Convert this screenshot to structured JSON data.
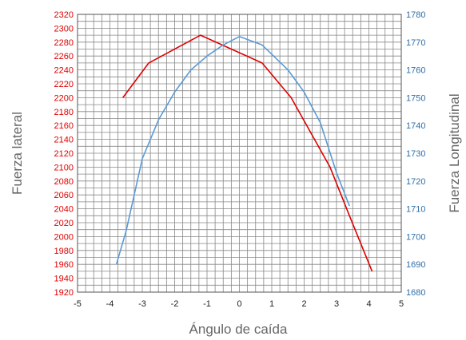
{
  "chart_data": {
    "type": "line",
    "xlabel": "Ángulo de caída",
    "ylabel_left": "Fuerza lateral",
    "ylabel_right": "Fuerza Longitudinal",
    "xlim": [
      -5,
      5
    ],
    "ylim_left": [
      1920,
      2320
    ],
    "ylim_right": [
      1680,
      1780
    ],
    "x_ticks": [
      -5,
      -4,
      -3,
      -2,
      -1,
      0,
      1,
      2,
      3,
      4,
      5
    ],
    "y_left_ticks": [
      1920,
      1940,
      1960,
      1980,
      2000,
      2020,
      2040,
      2060,
      2080,
      2100,
      2120,
      2140,
      2160,
      2180,
      2200,
      2220,
      2240,
      2260,
      2280,
      2300,
      2320
    ],
    "y_right_ticks": [
      1680,
      1690,
      1700,
      1710,
      1720,
      1730,
      1740,
      1750,
      1760,
      1770,
      1780
    ],
    "grid": true,
    "series": [
      {
        "axis": "left",
        "color": "#e00000",
        "points": [
          [
            -3.6,
            2200
          ],
          [
            -2.8,
            2250
          ],
          [
            -1.2,
            2290
          ],
          [
            0.7,
            2250
          ],
          [
            1.6,
            2200
          ],
          [
            2.8,
            2100
          ],
          [
            3.4,
            2030
          ],
          [
            4.1,
            1950
          ]
        ]
      },
      {
        "axis": "right",
        "color": "#5b9bd5",
        "points": [
          [
            -3.8,
            1690
          ],
          [
            -3.5,
            1702
          ],
          [
            -3.0,
            1728
          ],
          [
            -2.5,
            1742
          ],
          [
            -2.0,
            1752
          ],
          [
            -1.5,
            1760
          ],
          [
            -1.0,
            1765
          ],
          [
            -0.5,
            1769
          ],
          [
            0.0,
            1772
          ],
          [
            0.7,
            1769
          ],
          [
            1.5,
            1760
          ],
          [
            2.0,
            1752
          ],
          [
            2.5,
            1741
          ],
          [
            3.0,
            1723
          ],
          [
            3.4,
            1711
          ]
        ]
      }
    ]
  }
}
